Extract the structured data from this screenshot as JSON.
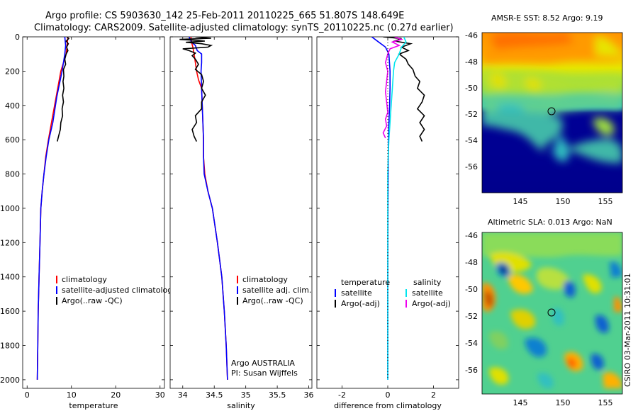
{
  "header": {
    "line1": "Argo profile: CS 5903630_142 25-Feb-2011 20110225_665 51.807S 148.649E",
    "line2": "Climatology: CARS2009. Satellite-adjusted climatology: synTS_20110225.nc (0.27d earlier)"
  },
  "colors": {
    "climatology": "#ff0000",
    "satellite": "#0000ff",
    "argo": "#000000",
    "satellite_salinity_diff": "#00e5ee",
    "argo_salinity_diff": "#ee00ee"
  },
  "side_label": "CSIRO 03-Mar-2011 10:31:01",
  "chart_data": [
    {
      "type": "line",
      "id": "temperature",
      "xlabel": "temperature",
      "xlim": [
        -1,
        31
      ],
      "ylim": [
        0,
        2050
      ],
      "yreversed": true,
      "xticks": [
        "0",
        "10",
        "20",
        "30"
      ],
      "yticks": [
        "0",
        "200",
        "400",
        "600",
        "800",
        "1000",
        "1200",
        "1400",
        "1600",
        "1800",
        "2000"
      ],
      "legend": [
        "climatology",
        "satellite-adjusted climatology",
        "Argo(..raw -QC)"
      ],
      "series": [
        {
          "name": "climatology",
          "color": "#ff0000",
          "points": [
            [
              9.2,
              0
            ],
            [
              8.8,
              100
            ],
            [
              7.6,
              200
            ],
            [
              6.2,
              400
            ],
            [
              5.5,
              500
            ],
            [
              4.8,
              600
            ],
            [
              4.2,
              700
            ],
            [
              3.8,
              800
            ],
            [
              3.4,
              900
            ],
            [
              3.1,
              1000
            ],
            [
              2.9,
              1200
            ],
            [
              2.7,
              1400
            ],
            [
              2.5,
              1600
            ],
            [
              2.4,
              1800
            ],
            [
              2.3,
              2000
            ]
          ]
        },
        {
          "name": "satellite-adjusted climatology",
          "color": "#0000ff",
          "points": [
            [
              8.5,
              0
            ],
            [
              8.7,
              50
            ],
            [
              8.5,
              100
            ],
            [
              7.9,
              200
            ],
            [
              6.7,
              350
            ],
            [
              5.8,
              500
            ],
            [
              4.9,
              600
            ],
            [
              4.3,
              700
            ],
            [
              3.8,
              800
            ],
            [
              3.4,
              900
            ],
            [
              3.1,
              1000
            ],
            [
              2.9,
              1200
            ],
            [
              2.7,
              1400
            ],
            [
              2.5,
              1600
            ],
            [
              2.4,
              1800
            ],
            [
              2.3,
              2000
            ]
          ]
        },
        {
          "name": "Argo(..raw -QC)",
          "color": "#000000",
          "points": [
            [
              9.0,
              0
            ],
            [
              9.4,
              10
            ],
            [
              8.8,
              25
            ],
            [
              9.3,
              40
            ],
            [
              8.9,
              60
            ],
            [
              9.2,
              80
            ],
            [
              8.8,
              100
            ],
            [
              8.5,
              130
            ],
            [
              8.7,
              160
            ],
            [
              8.2,
              190
            ],
            [
              8.3,
              230
            ],
            [
              8.1,
              260
            ],
            [
              8.3,
              300
            ],
            [
              8.0,
              340
            ],
            [
              8.2,
              380
            ],
            [
              7.9,
              420
            ],
            [
              8.0,
              460
            ],
            [
              7.6,
              500
            ],
            [
              7.5,
              540
            ],
            [
              7.1,
              580
            ],
            [
              6.8,
              610
            ]
          ]
        }
      ]
    },
    {
      "type": "line",
      "id": "salinity",
      "xlabel": "salinity",
      "xlim": [
        33.8,
        36.05
      ],
      "ylim": [
        0,
        2050
      ],
      "yreversed": true,
      "xticks": [
        "34",
        "34.5",
        "35",
        "35.5",
        "36"
      ],
      "legend": [
        "climatology",
        "satellite adj. clim.",
        "Argo(..raw -QC)"
      ],
      "annotation": [
        "Argo AUSTRALIA",
        "PI: Susan Wijffels"
      ],
      "series": [
        {
          "name": "climatology",
          "color": "#ff0000",
          "points": [
            [
              34.13,
              0
            ],
            [
              34.14,
              30
            ],
            [
              34.16,
              60
            ],
            [
              34.18,
              100
            ],
            [
              34.2,
              150
            ],
            [
              34.22,
              200
            ],
            [
              34.25,
              250
            ],
            [
              34.3,
              300
            ],
            [
              34.31,
              400
            ],
            [
              34.32,
              500
            ],
            [
              34.33,
              600
            ],
            [
              34.33,
              700
            ],
            [
              34.35,
              800
            ],
            [
              34.4,
              900
            ],
            [
              34.47,
              1000
            ],
            [
              34.55,
              1200
            ],
            [
              34.62,
              1400
            ],
            [
              34.66,
              1600
            ],
            [
              34.69,
              1800
            ],
            [
              34.71,
              2000
            ]
          ]
        },
        {
          "name": "satellite adj. clim.",
          "color": "#0000ff",
          "points": [
            [
              34.1,
              0
            ],
            [
              34.14,
              30
            ],
            [
              34.2,
              50
            ],
            [
              34.23,
              80
            ],
            [
              34.3,
              100
            ],
            [
              34.3,
              150
            ],
            [
              34.29,
              200
            ],
            [
              34.3,
              300
            ],
            [
              34.31,
              400
            ],
            [
              34.32,
              500
            ],
            [
              34.33,
              600
            ],
            [
              34.33,
              700
            ],
            [
              34.34,
              800
            ],
            [
              34.4,
              900
            ],
            [
              34.47,
              1000
            ],
            [
              34.55,
              1200
            ],
            [
              34.62,
              1400
            ],
            [
              34.66,
              1600
            ],
            [
              34.69,
              1800
            ],
            [
              34.71,
              2000
            ]
          ]
        },
        {
          "name": "Argo(..raw -QC)",
          "color": "#000000",
          "points": [
            [
              34.2,
              0
            ],
            [
              34.45,
              8
            ],
            [
              33.95,
              15
            ],
            [
              34.2,
              20
            ],
            [
              34.35,
              25
            ],
            [
              34.05,
              32
            ],
            [
              34.3,
              40
            ],
            [
              34.45,
              50
            ],
            [
              34.4,
              60
            ],
            [
              34.0,
              70
            ],
            [
              34.1,
              80
            ],
            [
              34.2,
              95
            ],
            [
              34.15,
              110
            ],
            [
              34.2,
              130
            ],
            [
              34.25,
              160
            ],
            [
              34.2,
              190
            ],
            [
              34.3,
              220
            ],
            [
              34.33,
              260
            ],
            [
              34.3,
              300
            ],
            [
              34.36,
              340
            ],
            [
              34.3,
              380
            ],
            [
              34.3,
              420
            ],
            [
              34.2,
              460
            ],
            [
              34.22,
              500
            ],
            [
              34.15,
              540
            ],
            [
              34.18,
              580
            ],
            [
              34.22,
              610
            ]
          ]
        }
      ]
    },
    {
      "type": "line",
      "id": "difference",
      "xlabel": "difference from climatology",
      "xlim": [
        -3.1,
        3.1
      ],
      "ylim": [
        0,
        2050
      ],
      "yreversed": true,
      "xticks": [
        "-2",
        "0",
        "2"
      ],
      "legend_left": [
        "temperature",
        "satellite",
        "Argo(-adj)"
      ],
      "legend_right": [
        "salinity",
        "satellite",
        "Argo(-adj)"
      ],
      "series": [
        {
          "name": "temperature satellite",
          "color": "#0000ff",
          "points": [
            [
              -0.7,
              0
            ],
            [
              -0.4,
              30
            ],
            [
              -0.1,
              60
            ],
            [
              0.05,
              100
            ],
            [
              0.1,
              200
            ],
            [
              0.1,
              300
            ],
            [
              0.08,
              400
            ],
            [
              0.05,
              500
            ],
            [
              0.03,
              600
            ],
            [
              0.02,
              800
            ],
            [
              0.01,
              1000
            ],
            [
              0.0,
              1500
            ],
            [
              0.0,
              2000
            ]
          ]
        },
        {
          "name": "temperature Argo(-adj)",
          "color": "#000000",
          "points": [
            [
              -0.2,
              0
            ],
            [
              0.6,
              10
            ],
            [
              0.3,
              25
            ],
            [
              1.0,
              40
            ],
            [
              0.6,
              60
            ],
            [
              0.9,
              80
            ],
            [
              0.5,
              100
            ],
            [
              0.8,
              130
            ],
            [
              0.9,
              160
            ],
            [
              1.1,
              190
            ],
            [
              1.2,
              230
            ],
            [
              1.4,
              260
            ],
            [
              1.3,
              300
            ],
            [
              1.6,
              340
            ],
            [
              1.5,
              380
            ],
            [
              1.3,
              420
            ],
            [
              1.6,
              460
            ],
            [
              1.4,
              500
            ],
            [
              1.6,
              540
            ],
            [
              1.4,
              580
            ],
            [
              1.5,
              610
            ]
          ]
        },
        {
          "name": "salinity satellite",
          "color": "#00e5ee",
          "points": [
            [
              0.7,
              0
            ],
            [
              0.8,
              30
            ],
            [
              0.6,
              60
            ],
            [
              0.5,
              100
            ],
            [
              0.3,
              150
            ],
            [
              0.25,
              200
            ],
            [
              0.2,
              300
            ],
            [
              0.15,
              400
            ],
            [
              0.1,
              500
            ],
            [
              0.05,
              600
            ],
            [
              0.02,
              700
            ],
            [
              0.0,
              800
            ],
            [
              0.0,
              1000
            ],
            [
              0.0,
              1500
            ],
            [
              0.0,
              2000
            ]
          ]
        },
        {
          "name": "salinity Argo(-adj)",
          "color": "#ee00ee",
          "points": [
            [
              0.3,
              0
            ],
            [
              0.6,
              15
            ],
            [
              0.2,
              30
            ],
            [
              0.5,
              50
            ],
            [
              0.1,
              70
            ],
            [
              0.0,
              100
            ],
            [
              -0.1,
              150
            ],
            [
              0.0,
              200
            ],
            [
              -0.05,
              260
            ],
            [
              -0.1,
              320
            ],
            [
              -0.05,
              380
            ],
            [
              0.0,
              440
            ],
            [
              -0.1,
              480
            ],
            [
              -0.05,
              520
            ],
            [
              -0.2,
              560
            ],
            [
              -0.1,
              590
            ]
          ]
        },
        {
          "name": "zero",
          "color": "#000000",
          "dotted": true,
          "points": [
            [
              0,
              0
            ],
            [
              0,
              2000
            ]
          ]
        }
      ]
    },
    {
      "type": "heatmap",
      "id": "sst-map",
      "title": "AMSR-E SST: 8.52 Argo: 9.19",
      "xlim": [
        140.5,
        157
      ],
      "ylim": [
        -58,
        -45.8
      ],
      "xticks": [
        "145",
        "150",
        "155"
      ],
      "yticks": [
        "-46",
        "-48",
        "-50",
        "-52",
        "-54",
        "-56"
      ],
      "marker": {
        "lon": 148.649,
        "lat": -51.807
      }
    },
    {
      "type": "heatmap",
      "id": "sla-map",
      "title": "Altimetric SLA: 0.013 Argo: NaN",
      "xlim": [
        140.5,
        157
      ],
      "ylim": [
        -57.8,
        -45.8
      ],
      "xticks": [
        "145",
        "150",
        "155"
      ],
      "yticks": [
        "-46",
        "-48",
        "-50",
        "-52",
        "-54",
        "-56"
      ],
      "marker": {
        "lon": 148.649,
        "lat": -51.807
      }
    }
  ]
}
